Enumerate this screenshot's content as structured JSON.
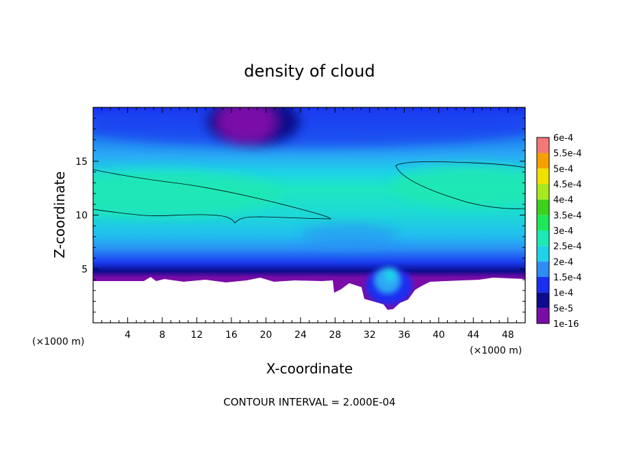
{
  "chart_data": {
    "type": "heatmap",
    "title": "density of cloud",
    "xlabel": "X-coordinate",
    "ylabel": "Z-coordinate",
    "x_unit": "(×1000 m)",
    "y_unit": "(×1000 m)",
    "xlim": [
      0,
      50
    ],
    "ylim": [
      0,
      20
    ],
    "x_ticks": [
      "4",
      "8",
      "12",
      "16",
      "20",
      "24",
      "28",
      "32",
      "36",
      "40",
      "44",
      "48"
    ],
    "y_ticks": [
      "5",
      "10",
      "15"
    ],
    "contour_interval_text": "CONTOUR INTERVAL = 2.000E-04",
    "colorbar": {
      "labels": [
        "1e-16",
        "5e-5",
        "1e-4",
        "1.5e-4",
        "2e-4",
        "2.5e-4",
        "3e-4",
        "3.5e-4",
        "4e-4",
        "4.5e-4",
        "5e-4",
        "5.5e-4",
        "6e-4"
      ],
      "colors": [
        "#7a0ca8",
        "#0c0c8c",
        "#1a2ef0",
        "#2e8cf5",
        "#1ed2e8",
        "#1ee8b4",
        "#1ee85a",
        "#3ed21e",
        "#a8e81e",
        "#f0e000",
        "#f5a000",
        "#f53c1e",
        "#f57878"
      ]
    },
    "contour_level": 0.0002
  }
}
